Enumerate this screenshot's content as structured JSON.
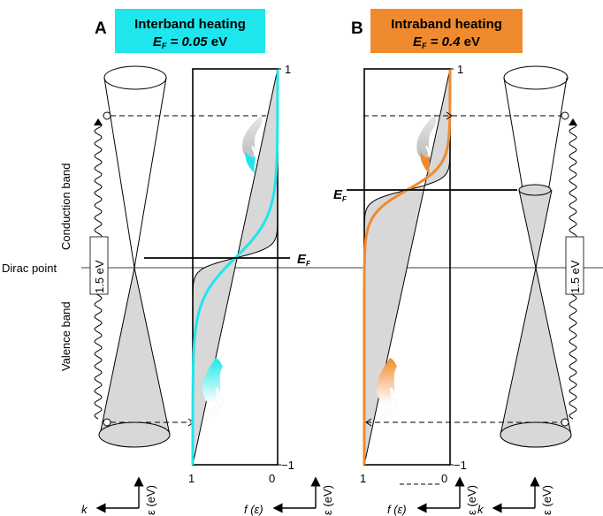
{
  "panels": [
    {
      "letter": "A",
      "title": "Interband heating",
      "ef_prefix": "E",
      "ef_sub": "F",
      "ef_value": " = 0.05",
      "ef_unit": " eV",
      "color": "#1fe6ec",
      "fermi_label": "E",
      "fermi_sub": "F",
      "tick_top": "1",
      "tick_bottom": "−1",
      "tick_f_one": "1",
      "tick_f_zero": "0",
      "gap_label": "1.5 eV",
      "f_axis_label": "f (ε)",
      "e_axis_label": "ε (eV)"
    },
    {
      "letter": "B",
      "title": "Intraband heating",
      "ef_prefix": "E",
      "ef_sub": "F",
      "ef_value": " = 0.4",
      "ef_unit": " eV",
      "color": "#f08a2e",
      "fermi_label": "E",
      "fermi_sub": "F",
      "tick_top": "1",
      "tick_bottom": "−1",
      "tick_f_one": "1",
      "tick_f_zero": "0",
      "gap_label": "1.5 eV",
      "f_axis_label": "f (ε)",
      "e_axis_label": "ε (eV)",
      "k_axis_label": "k"
    }
  ],
  "left_labels": {
    "conduction": "Conduction band",
    "valence": "Valence band",
    "dirac": "Dirac point",
    "k_axis": "k",
    "e_axis": "ε (eV)"
  },
  "colors": {
    "fill_gray": "#d8d8d8",
    "line": "#000000",
    "interband": "#1fe6ec",
    "intraband": "#f08a2e"
  }
}
